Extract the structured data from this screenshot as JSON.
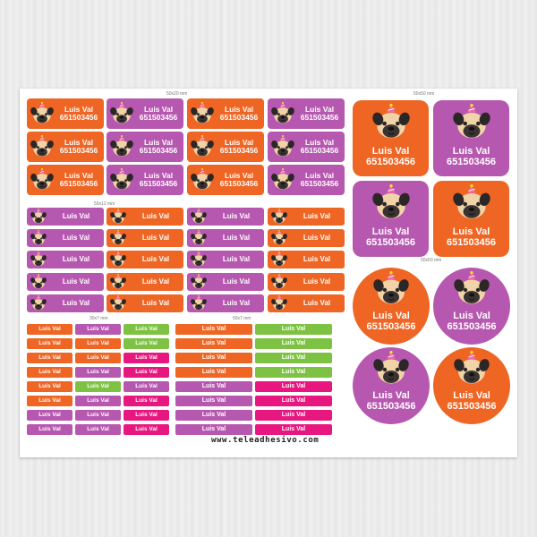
{
  "section_labels": {
    "s50x20": "50x20 mm",
    "s50x12": "50x12 mm",
    "s30x7": "30x7 mm",
    "s50x7": "50x7 mm",
    "sq50x50": "50x50 mm",
    "ci50x50": "50x50 mm"
  },
  "label_name": "Luis Val",
  "label_phone": "651503456",
  "website": "www.teleadhesivo.com",
  "colors": {
    "orange": "#ee6524",
    "purple": "#b758b0",
    "green": "#7dc242",
    "pink": "#e8177f"
  },
  "icon_names": [
    "pug-face-party-hat-icon"
  ]
}
